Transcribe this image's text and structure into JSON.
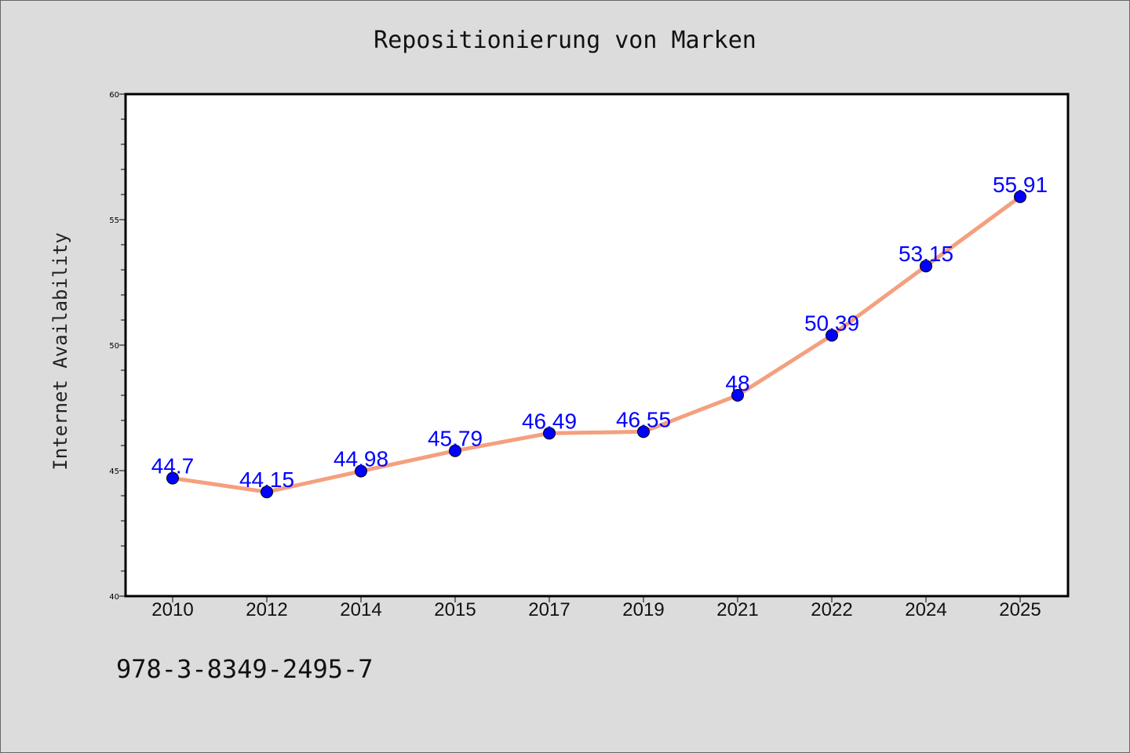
{
  "title": "Repositionierung von Marken",
  "footer_code": "978-3-8349-2495-7",
  "colors": {
    "background": "#dcdcdc",
    "plot_background": "#ffffff",
    "line": "#f4a07e",
    "marker": "#0000ff",
    "label": "#0000ff"
  },
  "chart_data": {
    "type": "line",
    "title": "Repositionierung von Marken",
    "xlabel": "",
    "ylabel": "Internet Availability",
    "categories": [
      "2010",
      "2012",
      "2014",
      "2015",
      "2017",
      "2019",
      "2021",
      "2022",
      "2024",
      "2025"
    ],
    "series": [
      {
        "values": [
          44.7,
          44.15,
          44.98,
          45.79,
          46.49,
          46.55,
          48,
          50.39,
          53.15,
          55.91
        ],
        "labels": [
          "44.7",
          "44.15",
          "44.98",
          "45.79",
          "46.49",
          "46.55",
          "48",
          "50.39",
          "53.15",
          "55.91"
        ]
      }
    ],
    "ylim": [
      40,
      60
    ],
    "yticks": [
      "40",
      "45",
      "50",
      "55",
      "60"
    ],
    "grid": false,
    "legend": "none"
  }
}
